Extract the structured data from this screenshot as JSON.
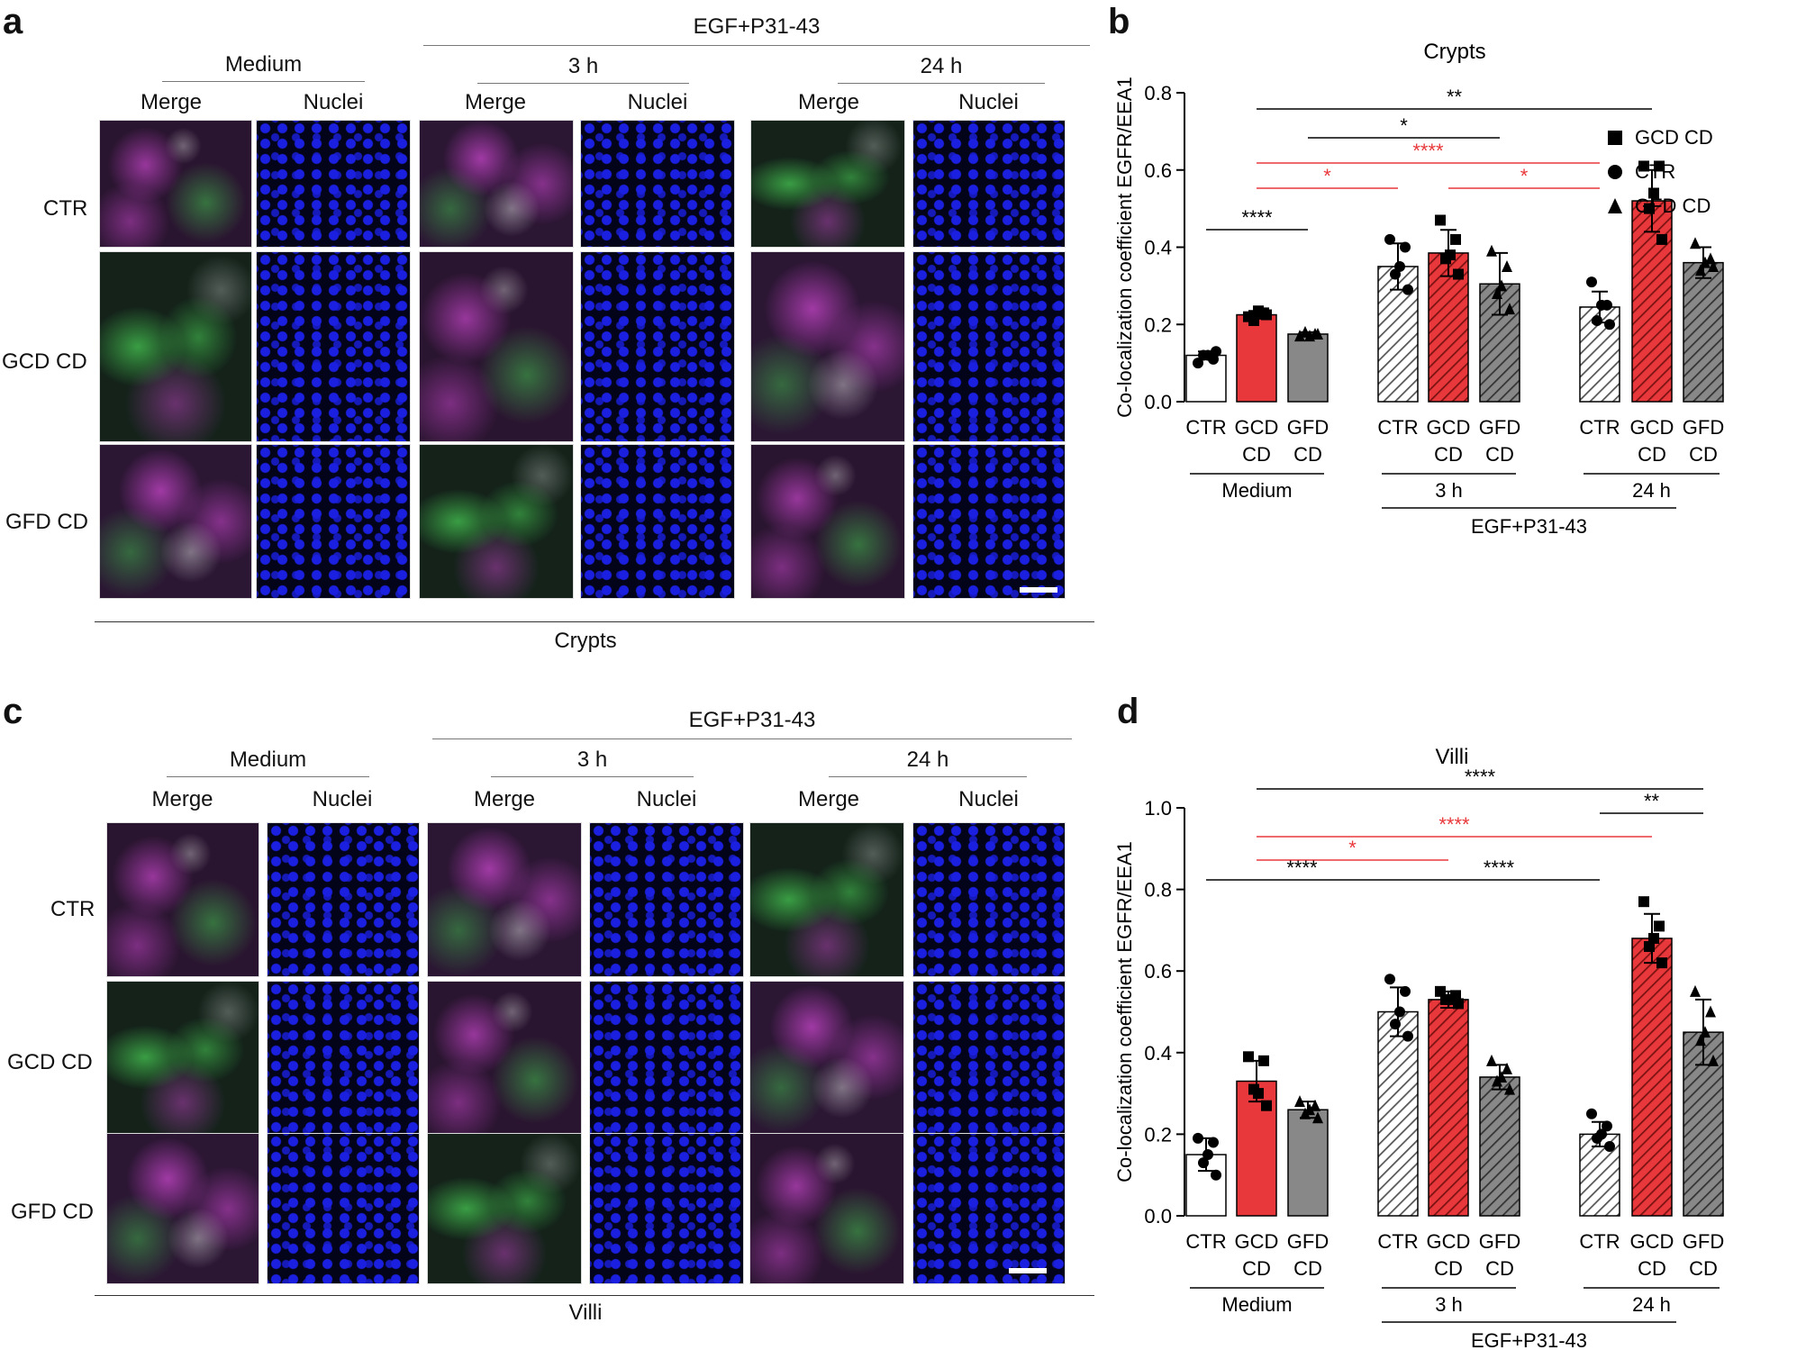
{
  "panels": {
    "a": {
      "letter": "a",
      "group": "Medium",
      "treatment": "EGF+P31-43",
      "t1": "3 h",
      "t2": "24 h",
      "col": "Merge",
      "col2": "Nuclei",
      "rows": [
        "CTR",
        "GCD CD",
        "GFD CD"
      ],
      "footer": "Crypts"
    },
    "b": {
      "letter": "b"
    },
    "c": {
      "letter": "c",
      "group": "Medium",
      "treatment": "EGF+P31-43",
      "t1": "3 h",
      "t2": "24 h",
      "col": "Merge",
      "col2": "Nuclei",
      "rows": [
        "CTR",
        "GCD CD",
        "GFD CD"
      ],
      "footer": "Villi"
    },
    "d": {
      "letter": "d"
    }
  },
  "colors": {
    "ctr": "#ffffff",
    "gcd": "#e8383b",
    "gfd": "#888888",
    "sig_black": "#000000",
    "sig_red": "#e8383b",
    "merge_green": "#3fb04a",
    "merge_magenta": "#b23fb6",
    "nuclei": "#1a1fe0"
  },
  "chart_data": [
    {
      "type": "bar",
      "title": "Crypts",
      "ylabel": "Co-localization coefficient EGFR/EEA1",
      "ylim": [
        0,
        0.8
      ],
      "yticks": [
        "0.0",
        "0.2",
        "0.4",
        "0.6",
        "0.8"
      ],
      "tick_labels": [
        "CTR",
        "GCD CD",
        "GFD CD",
        "CTR",
        "GCD CD",
        "GFD CD",
        "CTR",
        "GCD CD",
        "GFD CD"
      ],
      "groups": [
        "Medium",
        "3 h",
        "24 h"
      ],
      "treatment": "EGF+P31-43",
      "legend": [
        "GCD CD",
        "CTR",
        "GFD CD"
      ],
      "legend_position": "top-right",
      "bars": [
        {
          "cond": "CTR",
          "value": 0.12,
          "sd": 0.01,
          "points": [
            0.1,
            0.11,
            0.12,
            0.13,
            0.12
          ]
        },
        {
          "cond": "GCD CD",
          "value": 0.225,
          "sd": 0.01,
          "points": [
            0.22,
            0.23,
            0.21,
            0.225,
            0.235
          ]
        },
        {
          "cond": "GFD CD",
          "value": 0.175,
          "sd": 0.005,
          "points": [
            0.17,
            0.175,
            0.18,
            0.175,
            0.17
          ]
        },
        {
          "cond": "CTR",
          "value": 0.35,
          "sd": 0.06,
          "points": [
            0.42,
            0.4,
            0.33,
            0.29,
            0.35
          ]
        },
        {
          "cond": "GCD CD",
          "value": 0.385,
          "sd": 0.06,
          "points": [
            0.47,
            0.42,
            0.37,
            0.33,
            0.38
          ]
        },
        {
          "cond": "GFD CD",
          "value": 0.305,
          "sd": 0.08,
          "points": [
            0.39,
            0.35,
            0.28,
            0.24,
            0.3
          ]
        },
        {
          "cond": "CTR",
          "value": 0.245,
          "sd": 0.04,
          "points": [
            0.31,
            0.25,
            0.21,
            0.2,
            0.25
          ]
        },
        {
          "cond": "GCD CD",
          "value": 0.52,
          "sd": 0.08,
          "points": [
            0.61,
            0.61,
            0.5,
            0.42,
            0.54
          ]
        },
        {
          "cond": "GFD CD",
          "value": 0.36,
          "sd": 0.04,
          "points": [
            0.41,
            0.37,
            0.34,
            0.35,
            0.36
          ]
        }
      ],
      "significance": [
        {
          "from": 2,
          "to": 8,
          "label": "**",
          "color": "black"
        },
        {
          "from": 3,
          "to": 6,
          "label": "*",
          "color": "black"
        },
        {
          "from": 2,
          "to": 7,
          "label": "****",
          "color": "red"
        },
        {
          "from": 2,
          "to": 4,
          "label": "*",
          "color": "red"
        },
        {
          "from": 5,
          "to": 7,
          "label": "*",
          "color": "red"
        },
        {
          "from": 1,
          "to": 3,
          "label": "****",
          "color": "black"
        }
      ]
    },
    {
      "type": "bar",
      "title": "Villi",
      "ylabel": "Co-localization coefficient EGFR/EEA1",
      "ylim": [
        0,
        1.0
      ],
      "yticks": [
        "0.0",
        "0.2",
        "0.4",
        "0.6",
        "0.8",
        "1.0"
      ],
      "tick_labels": [
        "CTR",
        "GCD CD",
        "GFD CD",
        "CTR",
        "GCD CD",
        "GFD CD",
        "CTR",
        "GCD CD",
        "GFD CD"
      ],
      "groups": [
        "Medium",
        "3 h",
        "24 h"
      ],
      "treatment": "EGF+P31-43",
      "bars": [
        {
          "cond": "CTR",
          "value": 0.15,
          "sd": 0.04,
          "points": [
            0.19,
            0.18,
            0.13,
            0.1,
            0.15
          ]
        },
        {
          "cond": "GCD CD",
          "value": 0.33,
          "sd": 0.05,
          "points": [
            0.39,
            0.38,
            0.31,
            0.27,
            0.3
          ]
        },
        {
          "cond": "GFD CD",
          "value": 0.26,
          "sd": 0.02,
          "points": [
            0.28,
            0.27,
            0.25,
            0.24,
            0.26
          ]
        },
        {
          "cond": "CTR",
          "value": 0.5,
          "sd": 0.06,
          "points": [
            0.58,
            0.55,
            0.47,
            0.44,
            0.5
          ]
        },
        {
          "cond": "GCD CD",
          "value": 0.53,
          "sd": 0.02,
          "points": [
            0.55,
            0.54,
            0.53,
            0.52,
            0.53
          ]
        },
        {
          "cond": "GFD CD",
          "value": 0.34,
          "sd": 0.03,
          "points": [
            0.38,
            0.36,
            0.33,
            0.31,
            0.34
          ]
        },
        {
          "cond": "CTR",
          "value": 0.2,
          "sd": 0.03,
          "points": [
            0.25,
            0.22,
            0.19,
            0.17,
            0.2
          ]
        },
        {
          "cond": "GCD CD",
          "value": 0.68,
          "sd": 0.06,
          "points": [
            0.77,
            0.71,
            0.66,
            0.62,
            0.68
          ]
        },
        {
          "cond": "GFD CD",
          "value": 0.45,
          "sd": 0.08,
          "points": [
            0.55,
            0.5,
            0.43,
            0.38,
            0.45
          ]
        }
      ],
      "significance": [
        {
          "from": 2,
          "to": 9,
          "label": "****",
          "color": "black"
        },
        {
          "from": 7,
          "to": 9,
          "label": "**",
          "color": "black"
        },
        {
          "from": 2,
          "to": 8,
          "label": "****",
          "color": "red"
        },
        {
          "from": 2,
          "to": 5,
          "label": "*",
          "color": "red"
        },
        {
          "from": 1,
          "to": 4,
          "label": "****",
          "color": "black"
        },
        {
          "from": 4,
          "to": 7,
          "label": "****",
          "color": "black"
        }
      ]
    }
  ]
}
